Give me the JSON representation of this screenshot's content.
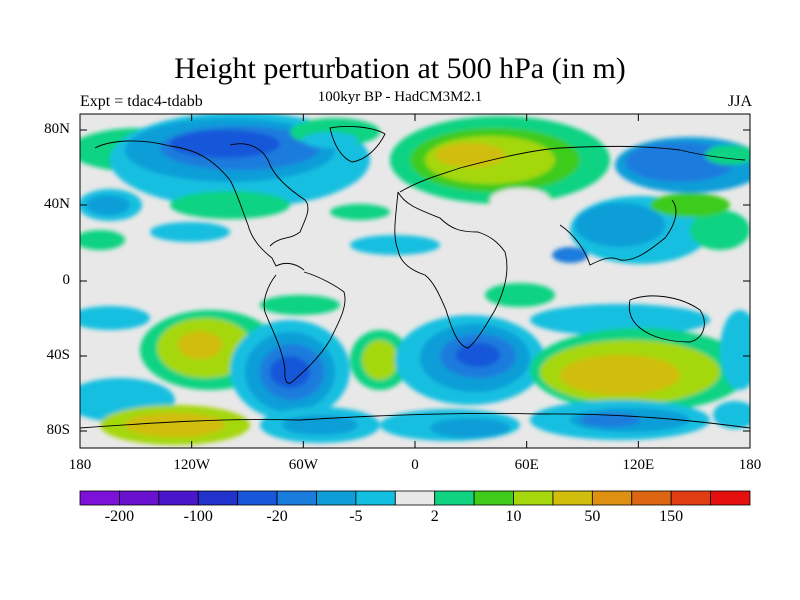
{
  "title": "Height perturbation at 500 hPa (in m)",
  "subtitle": "100kyr BP - HadCM3M2.1",
  "left_label": "Expt = tdac4-tdabb",
  "right_label": "JJA",
  "lat_ticks": [
    "80N",
    "40N",
    "0",
    "40S",
    "80S"
  ],
  "lon_ticks": [
    "180",
    "120W",
    "60W",
    "0",
    "60E",
    "120E",
    "180"
  ],
  "colorbar": {
    "colors": [
      "#7e11d8",
      "#6a10cf",
      "#4a16c9",
      "#2233cc",
      "#1757d9",
      "#1a7cdd",
      "#0d9ed8",
      "#13bfe0",
      "#e8e8e8",
      "#10d382",
      "#3ecb1a",
      "#a5d70c",
      "#d1bd0b",
      "#de9011",
      "#dc6612",
      "#e03e12",
      "#e50f10"
    ],
    "labels": [
      "-200",
      "-100",
      "-20",
      "-5",
      "2",
      "10",
      "50",
      "150"
    ]
  },
  "icons": [
    "coastline-map"
  ]
}
